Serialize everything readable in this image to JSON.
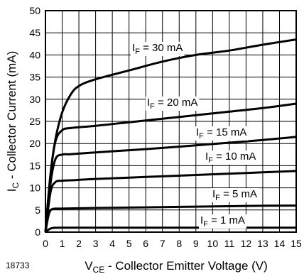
{
  "figure_number": "18733",
  "chart_data": {
    "type": "line",
    "title": "",
    "xlabel": {
      "main": "V",
      "sub": "CE",
      "rest": " - Collector Emitter Voltage (V)"
    },
    "ylabel": {
      "main": "I",
      "sub": "C",
      "rest": " - Collector Current (mA)"
    },
    "xlim": [
      0,
      15
    ],
    "ylim": [
      0,
      50
    ],
    "xticks": [
      "0",
      "1",
      "2",
      "3",
      "4",
      "5",
      "6",
      "7",
      "8",
      "9",
      "10",
      "11",
      "12",
      "13",
      "14",
      "15"
    ],
    "yticks": [
      "0",
      "5",
      "10",
      "15",
      "20",
      "25",
      "30",
      "35",
      "40",
      "45",
      "50"
    ],
    "grid": true,
    "series": [
      {
        "name": "IF = 30 mA",
        "label": {
          "main": "I",
          "sub": "F",
          "rest": " = 30 mA"
        },
        "x": [
          0,
          0.3,
          0.6,
          1.0,
          1.5,
          2.0,
          3,
          5,
          7,
          9,
          11,
          13,
          15
        ],
        "y": [
          0,
          13,
          21,
          27,
          31,
          33,
          34.5,
          36.5,
          38.5,
          40,
          41,
          42.3,
          43.5
        ]
      },
      {
        "name": "IF = 20 mA",
        "label": {
          "main": "I",
          "sub": "F",
          "rest": " = 20 mA"
        },
        "x": [
          0,
          0.3,
          0.6,
          1.0,
          1.5,
          3,
          5,
          7,
          9,
          11,
          13,
          15
        ],
        "y": [
          0,
          13,
          20.5,
          23,
          23.5,
          24,
          24.8,
          25.6,
          26.4,
          27.2,
          28,
          29
        ]
      },
      {
        "name": "IF = 15 mA",
        "label": {
          "main": "I",
          "sub": "F",
          "rest": " = 15 mA"
        },
        "x": [
          0,
          0.3,
          0.6,
          1.0,
          1.5,
          3,
          5,
          7,
          9,
          11,
          13,
          15
        ],
        "y": [
          0,
          11,
          16.5,
          17.5,
          17.6,
          18,
          18.5,
          19,
          19.6,
          20.2,
          20.8,
          21.5
        ]
      },
      {
        "name": "IF = 10 mA",
        "label": {
          "main": "I",
          "sub": "F",
          "rest": " = 10 mA"
        },
        "x": [
          0,
          0.3,
          0.6,
          1.0,
          1.5,
          3,
          5,
          7,
          9,
          11,
          13,
          15
        ],
        "y": [
          0,
          9,
          11.3,
          11.6,
          11.7,
          12,
          12.3,
          12.6,
          12.9,
          13.2,
          13.5,
          13.8
        ]
      },
      {
        "name": "IF = 5 mA",
        "label": {
          "main": "I",
          "sub": "F",
          "rest": " = 5 mA"
        },
        "x": [
          0,
          0.2,
          0.4,
          0.8,
          1.5,
          3,
          5,
          7,
          9,
          11,
          13,
          15
        ],
        "y": [
          0,
          4,
          5.2,
          5.3,
          5.35,
          5.45,
          5.55,
          5.65,
          5.75,
          5.85,
          5.95,
          6.0
        ]
      },
      {
        "name": "IF = 1 mA",
        "label": {
          "main": "I",
          "sub": "F",
          "rest": " = 1 mA"
        },
        "x": [
          0,
          0.2,
          0.4,
          1.0,
          5,
          10,
          15
        ],
        "y": [
          0,
          0.6,
          0.9,
          1.0,
          1.0,
          1.0,
          1.0
        ]
      }
    ]
  }
}
